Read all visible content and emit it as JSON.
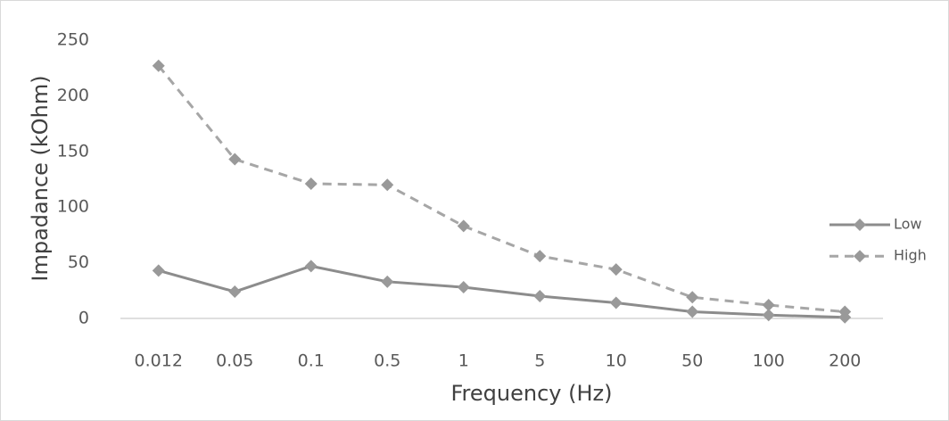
{
  "chart_data": {
    "type": "line",
    "x_label": "Frequency (Hz)",
    "y_label": "Impadance (kOhm)",
    "categories": [
      "0.012",
      "0.05",
      "0.1",
      "0.5",
      "1",
      "5",
      "10",
      "50",
      "100",
      "200"
    ],
    "series": [
      {
        "name": "Low",
        "color": "#8c8c8c",
        "dashed": false,
        "values": [
          43,
          24,
          47,
          33,
          28,
          20,
          14,
          6,
          3,
          1
        ]
      },
      {
        "name": "High",
        "color": "#a6a6a6",
        "dashed": true,
        "values": [
          227,
          143,
          121,
          120,
          83,
          56,
          44,
          19,
          12,
          6
        ]
      }
    ],
    "ylim": [
      0,
      250
    ],
    "yticks": [
      0,
      50,
      100,
      150,
      200,
      250
    ],
    "grid": false,
    "legend": "right"
  }
}
